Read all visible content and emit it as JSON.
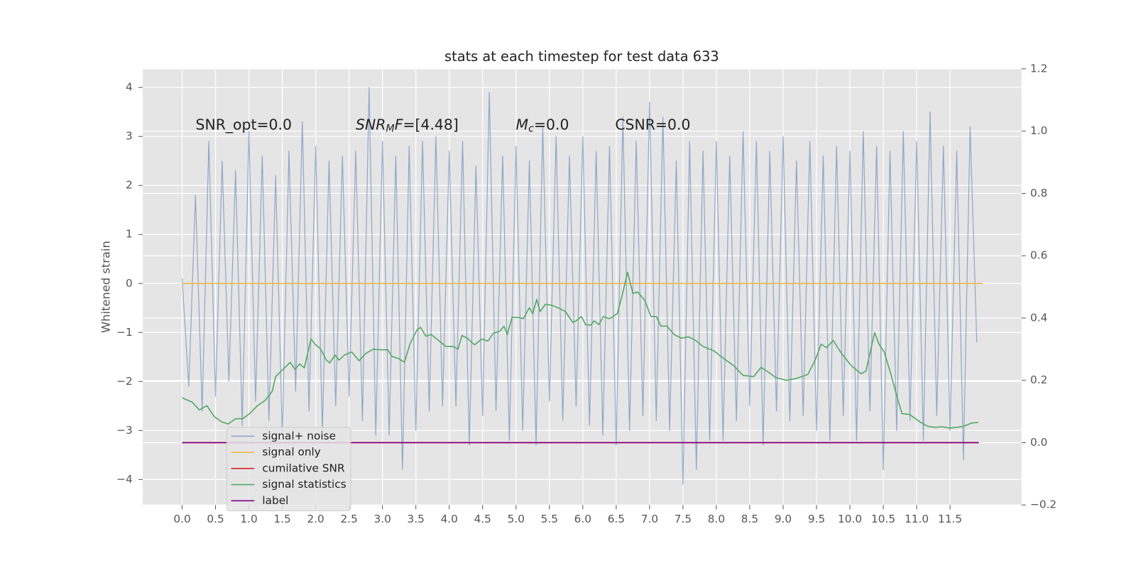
{
  "chart_data": {
    "type": "line",
    "title": "stats at each timestep for test data 633",
    "ylabel": "Whitened strain",
    "xlim": [
      -0.59,
      12.57
    ],
    "ylim": [
      -4.52,
      4.38
    ],
    "y2lim": [
      -0.2,
      1.2
    ],
    "grid": true,
    "xticks": [
      {
        "value": 0,
        "label": "0.0"
      },
      0.5,
      {
        "value": 1,
        "label": "1.0"
      },
      1.5,
      {
        "value": 2,
        "label": "2.0"
      },
      2.5,
      {
        "value": 3,
        "label": "3.0"
      },
      3.5,
      {
        "value": 4,
        "label": "4.0"
      },
      4.5,
      {
        "value": 5,
        "label": "5.0"
      },
      5.5,
      {
        "value": 6,
        "label": "6.0"
      },
      6.5,
      {
        "value": 7,
        "label": "7.0"
      },
      7.5,
      {
        "value": 8,
        "label": "8.0"
      },
      8.5,
      {
        "value": 9,
        "label": "9.0"
      },
      9.5,
      {
        "value": 10,
        "label": "10.0"
      },
      10.5,
      {
        "value": 11,
        "label": "11.0"
      },
      11.5
    ],
    "yticks": [
      {
        "value": -4,
        "label": "−4"
      },
      {
        "value": -3,
        "label": "−3"
      },
      {
        "value": -2,
        "label": "−2"
      },
      {
        "value": -1,
        "label": "−1"
      },
      0,
      1,
      2,
      3,
      4
    ],
    "y2ticks": [
      {
        "value": -0.2,
        "label": "−0.2"
      },
      {
        "value": 0,
        "label": "0.0"
      },
      0.2,
      0.4,
      0.6,
      0.8,
      {
        "value": 1,
        "label": "1.0"
      },
      1.2
    ],
    "annotations": [
      {
        "parts": [
          {
            "text": "SNR_opt=0.0"
          }
        ]
      },
      {
        "parts": [
          {
            "text": "SNR",
            "math": true
          },
          {
            "text": "M",
            "math": true,
            "sub": true
          },
          {
            "text": "F",
            "math": true
          },
          {
            "text": "=[4.48]"
          }
        ]
      },
      {
        "parts": [
          {
            "text": "M",
            "math": true
          },
          {
            "text": "c",
            "math": true,
            "sub": true
          },
          {
            "text": "=0.0"
          }
        ]
      },
      {
        "parts": [
          {
            "text": "CSNR=0.0"
          }
        ]
      }
    ],
    "series": [
      {
        "name": "signal+ noise",
        "color": "#4c72b0",
        "x": [
          0,
          0.1,
          0.2,
          0.3,
          0.4,
          0.5,
          0.6,
          0.7,
          0.8,
          0.9,
          1,
          1.1,
          1.2,
          1.3,
          1.4,
          1.5,
          1.6,
          1.7,
          1.8,
          1.9,
          2,
          2.1,
          2.2,
          2.3,
          2.4,
          2.5,
          2.6,
          2.7,
          2.8,
          2.9,
          3,
          3.1,
          3.2,
          3.3,
          3.4,
          3.5,
          3.6,
          3.7,
          3.8,
          3.9,
          4,
          4.1,
          4.2,
          4.3,
          4.4,
          4.5,
          4.6,
          4.7,
          4.8,
          4.9,
          5,
          5.1,
          5.2,
          5.3,
          5.4,
          5.5,
          5.6,
          5.7,
          5.8,
          5.9,
          6,
          6.1,
          6.2,
          6.3,
          6.4,
          6.5,
          6.6,
          6.7,
          6.8,
          6.9,
          7,
          7.1,
          7.2,
          7.3,
          7.4,
          7.5,
          7.6,
          7.7,
          7.8,
          7.9,
          8,
          8.1,
          8.2,
          8.3,
          8.4,
          8.5,
          8.6,
          8.7,
          8.8,
          8.9,
          9,
          9.1,
          9.2,
          9.3,
          9.4,
          9.5,
          9.6,
          9.7,
          9.8,
          9.9,
          10,
          10.1,
          10.2,
          10.3,
          10.4,
          10.5,
          10.6,
          10.7,
          10.8,
          10.9,
          11,
          11.1,
          11.2,
          11.3,
          11.4,
          11.5,
          11.6,
          11.7,
          11.8,
          11.9
        ],
        "values": [
          0.1,
          -2.1,
          1.8,
          -2.6,
          2.9,
          -2.3,
          2.5,
          -2.0,
          2.3,
          -2.9,
          3.1,
          -2.4,
          2.6,
          -2.8,
          2.2,
          -3.1,
          2.7,
          -2.2,
          3.3,
          -2.6,
          2.8,
          -3.0,
          2.5,
          -2.5,
          2.6,
          -2.3,
          2.7,
          -2.8,
          4.0,
          -3.1,
          2.9,
          -3.1,
          2.6,
          -3.8,
          2.8,
          -3.0,
          2.9,
          -2.6,
          3.0,
          -2.5,
          2.7,
          -2.5,
          2.9,
          -3.3,
          2.4,
          -2.7,
          3.9,
          -2.6,
          2.6,
          -3.2,
          2.8,
          -3.0,
          2.5,
          -3.3,
          3.2,
          -2.4,
          3.0,
          -2.8,
          2.6,
          -2.5,
          3.0,
          -2.9,
          2.7,
          -3.1,
          2.8,
          -3.3,
          3.4,
          -3.0,
          2.9,
          -2.7,
          3.7,
          -2.8,
          3.4,
          -3.0,
          2.5,
          -4.1,
          2.9,
          -3.8,
          2.7,
          -3.2,
          2.9,
          -3.2,
          2.6,
          -2.8,
          3.1,
          -2.5,
          2.9,
          -3.3,
          2.7,
          -2.6,
          3.0,
          -2.8,
          2.5,
          -2.7,
          2.9,
          -3.0,
          2.6,
          -3.2,
          2.8,
          -2.7,
          2.7,
          -3.2,
          3.1,
          -2.6,
          2.8,
          -3.8,
          2.7,
          -3.0,
          3.1,
          -2.8,
          2.9,
          -3.2,
          3.5,
          -2.7,
          2.8,
          -3.0,
          2.7,
          -3.6,
          3.2,
          -1.2
        ]
      },
      {
        "name": "signal only",
        "color": "#f0b94a",
        "x": [
          0,
          11.99
        ],
        "values": [
          0,
          0
        ]
      },
      {
        "name": "cumilative SNR",
        "color": "#d62728",
        "axis": "y2",
        "x": [
          0,
          11.93
        ],
        "values": [
          0,
          0
        ]
      },
      {
        "name": "signal statistics",
        "color": "#55a868",
        "axis": "y2",
        "x": [
          0,
          0.15,
          0.26,
          0.37,
          0.48,
          0.59,
          0.69,
          0.8,
          0.91,
          1.02,
          1.13,
          1.24,
          1.35,
          1.4,
          1.51,
          1.62,
          1.69,
          1.76,
          1.83,
          1.93,
          2,
          2.07,
          2.16,
          2.21,
          2.29,
          2.35,
          2.43,
          2.54,
          2.65,
          2.75,
          2.86,
          2.97,
          3.08,
          3.14,
          3.24,
          3.33,
          3.41,
          3.52,
          3.57,
          3.65,
          3.73,
          3.84,
          3.95,
          4.06,
          4.13,
          4.19,
          4.27,
          4.38,
          4.49,
          4.58,
          4.66,
          4.76,
          4.82,
          4.87,
          4.94,
          5.03,
          5.11,
          5.2,
          5.25,
          5.31,
          5.36,
          5.44,
          5.52,
          5.63,
          5.74,
          5.79,
          5.85,
          5.9,
          5.98,
          6.04,
          6.12,
          6.17,
          6.24,
          6.31,
          6.39,
          6.44,
          6.52,
          6.61,
          6.67,
          6.75,
          6.82,
          6.93,
          7.02,
          7.1,
          7.17,
          7.26,
          7.37,
          7.48,
          7.58,
          7.69,
          7.8,
          7.96,
          8.13,
          8.26,
          8.4,
          8.56,
          8.67,
          8.78,
          8.89,
          9.05,
          9.21,
          9.37,
          9.48,
          9.57,
          9.65,
          9.75,
          9.86,
          10.02,
          10.17,
          10.24,
          10.37,
          10.44,
          10.51,
          10.6,
          10.71,
          10.78,
          10.89,
          11.06,
          11.16,
          11.27,
          11.38,
          11.49,
          11.6,
          11.71,
          11.82,
          11.92
        ],
        "values": [
          0.144,
          0.13,
          0.105,
          0.119,
          0.084,
          0.067,
          0.06,
          0.077,
          0.077,
          0.095,
          0.119,
          0.135,
          0.165,
          0.212,
          0.235,
          0.258,
          0.235,
          0.253,
          0.24,
          0.333,
          0.314,
          0.302,
          0.265,
          0.256,
          0.281,
          0.265,
          0.281,
          0.291,
          0.263,
          0.286,
          0.3,
          0.298,
          0.298,
          0.277,
          0.27,
          0.258,
          0.316,
          0.363,
          0.37,
          0.342,
          0.347,
          0.328,
          0.309,
          0.309,
          0.3,
          0.344,
          0.335,
          0.314,
          0.333,
          0.326,
          0.351,
          0.358,
          0.374,
          0.347,
          0.402,
          0.402,
          0.398,
          0.433,
          0.414,
          0.46,
          0.421,
          0.444,
          0.442,
          0.433,
          0.421,
          0.405,
          0.386,
          0.391,
          0.405,
          0.379,
          0.377,
          0.391,
          0.379,
          0.405,
          0.398,
          0.402,
          0.416,
          0.491,
          0.547,
          0.479,
          0.484,
          0.456,
          0.405,
          0.405,
          0.374,
          0.374,
          0.347,
          0.335,
          0.34,
          0.328,
          0.309,
          0.295,
          0.267,
          0.247,
          0.216,
          0.212,
          0.242,
          0.226,
          0.209,
          0.2,
          0.207,
          0.219,
          0.265,
          0.316,
          0.305,
          0.328,
          0.291,
          0.247,
          0.221,
          0.23,
          0.353,
          0.314,
          0.293,
          0.23,
          0.144,
          0.093,
          0.091,
          0.065,
          0.053,
          0.049,
          0.051,
          0.047,
          0.049,
          0.053,
          0.063,
          0.065
        ]
      },
      {
        "name": "label",
        "color": "#800080",
        "axis": "y2",
        "x": [
          0,
          11.93
        ],
        "values": [
          0,
          0
        ]
      }
    ]
  }
}
